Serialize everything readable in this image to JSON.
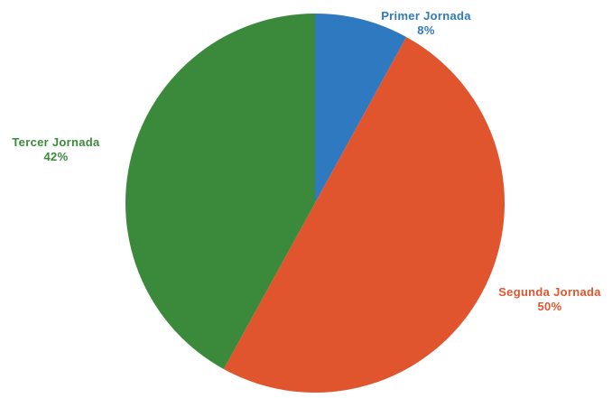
{
  "chart_data": {
    "type": "pie",
    "categories": [
      "Primer Jornada",
      "Segunda Jornada",
      "Tercer Jornada"
    ],
    "values": [
      8,
      50,
      42
    ],
    "value_labels": [
      "8%",
      "50%",
      "42%"
    ],
    "colors": [
      "#2f79c0",
      "#e0552e",
      "#3b8a3b"
    ],
    "start_angle_deg": 0,
    "direction": "clockwise",
    "legend": "none"
  }
}
